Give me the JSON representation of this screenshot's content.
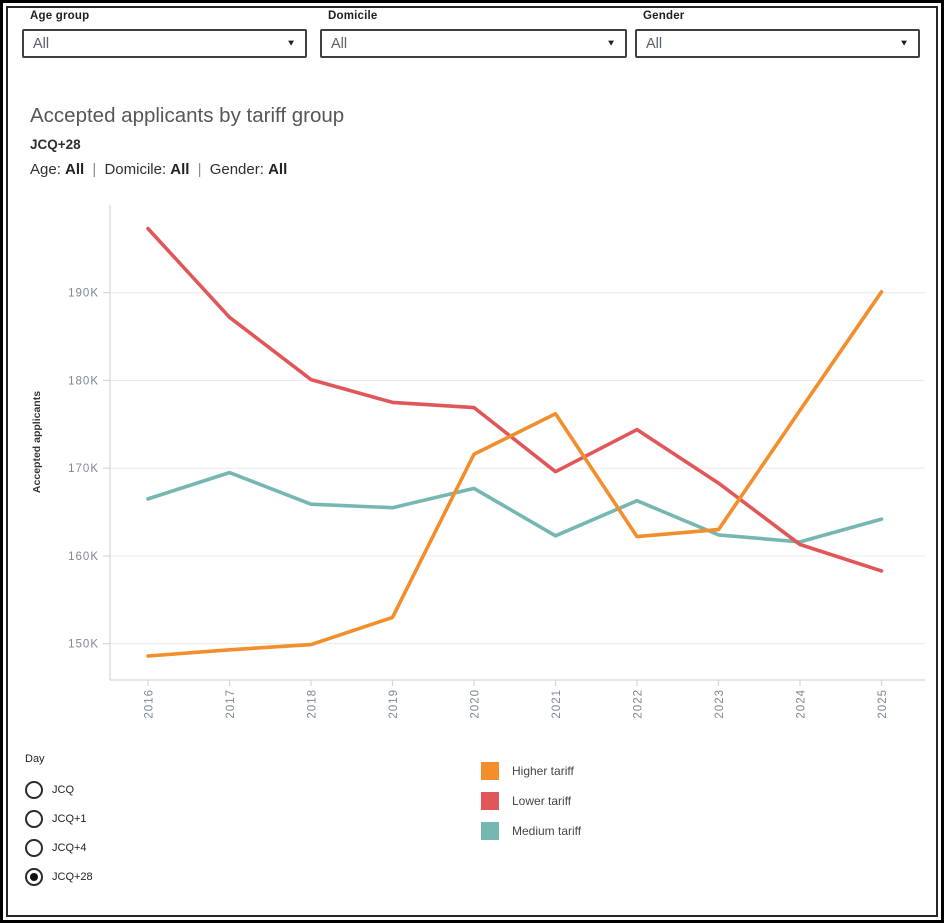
{
  "filters": [
    {
      "label": "Age group",
      "value": "All"
    },
    {
      "label": "Domicile",
      "value": "All"
    },
    {
      "label": "Gender",
      "value": "All"
    }
  ],
  "icons": {
    "caret_down": "▼"
  },
  "header": {
    "title": "Accepted applicants by tariff group",
    "subtitle": "JCQ+28",
    "filter_summary": [
      {
        "label": "Age",
        "value": "All"
      },
      {
        "label": "Domicile",
        "value": "All"
      },
      {
        "label": "Gender",
        "value": "All"
      }
    ],
    "separator": "|"
  },
  "chart_data": {
    "type": "line",
    "title": "Accepted applicants by tariff group",
    "subtitle": "JCQ+28",
    "x": [
      2016,
      2017,
      2018,
      2019,
      2020,
      2021,
      2022,
      2023,
      2024,
      2025
    ],
    "series": [
      {
        "name": "Higher tariff",
        "color": "#F28E2B",
        "values_thousands": [
          148.6,
          149.3,
          149.9,
          153.0,
          171.6,
          176.2,
          162.2,
          163.0,
          176.6,
          190.1
        ]
      },
      {
        "name": "Lower tariff",
        "color": "#E15759",
        "values_thousands": [
          197.3,
          187.2,
          180.1,
          177.5,
          176.9,
          169.6,
          174.4,
          168.3,
          161.3,
          158.3
        ]
      },
      {
        "name": "Medium tariff",
        "color": "#76B7B2",
        "values_thousands": [
          166.5,
          169.5,
          165.9,
          165.5,
          167.7,
          162.3,
          166.3,
          162.4,
          161.6,
          164.2
        ]
      }
    ],
    "xlabel": "",
    "ylabel": "Accepted applicants",
    "units": "thousands of accepted applicants",
    "ylim_thousands": [
      146,
      200
    ],
    "yticks_thousands": [
      150,
      160,
      170,
      180,
      190
    ],
    "ytick_labels": [
      "150K",
      "160K",
      "170K",
      "180K",
      "190K"
    ],
    "grid": true,
    "legend_position": "bottom"
  },
  "legend": {
    "items": [
      {
        "label": "Higher tariff",
        "color": "#F28E2B"
      },
      {
        "label": "Lower tariff",
        "color": "#E15759"
      },
      {
        "label": "Medium tariff",
        "color": "#76B7B2"
      }
    ]
  },
  "day_filter": {
    "label": "Day",
    "options": [
      {
        "label": "JCQ",
        "selected": false
      },
      {
        "label": "JCQ+1",
        "selected": false
      },
      {
        "label": "JCQ+4",
        "selected": false
      },
      {
        "label": "JCQ+28",
        "selected": true
      }
    ]
  }
}
